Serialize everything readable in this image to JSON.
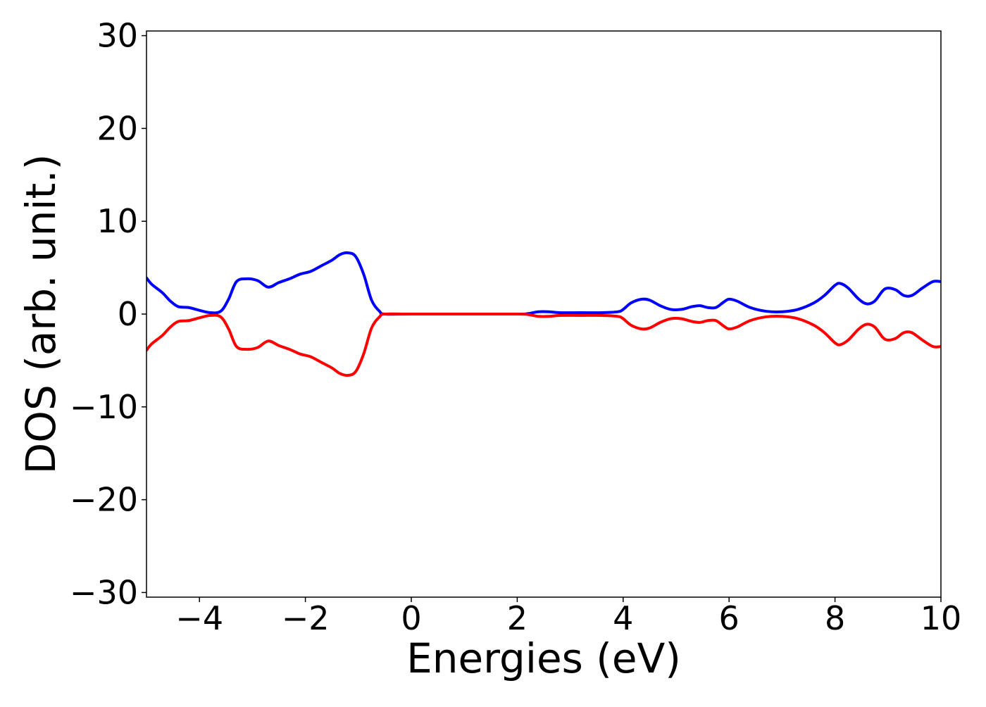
{
  "chart_data": {
    "type": "line",
    "title": "",
    "xlabel": "Energies (eV)",
    "ylabel": "DOS (arb. unit.)",
    "xlim": [
      -5,
      10
    ],
    "ylim": [
      -30.5,
      30.5
    ],
    "grid": false,
    "x_ticks": [
      {
        "value": -4,
        "label": "−4"
      },
      {
        "value": -2,
        "label": "−2"
      },
      {
        "value": 0,
        "label": "0"
      },
      {
        "value": 2,
        "label": "2"
      },
      {
        "value": 4,
        "label": "4"
      },
      {
        "value": 6,
        "label": "6"
      },
      {
        "value": 8,
        "label": "8"
      },
      {
        "value": 10,
        "label": "10"
      }
    ],
    "y_ticks": [
      {
        "value": 30,
        "label": "30"
      },
      {
        "value": 20,
        "label": "20"
      },
      {
        "value": 10,
        "label": "10"
      },
      {
        "value": 0,
        "label": "0"
      },
      {
        "value": -10,
        "label": "−10"
      },
      {
        "value": -20,
        "label": "−20"
      },
      {
        "value": -30,
        "label": "−30"
      }
    ],
    "series": [
      {
        "color": "#0000ff",
        "points": [
          [
            -5.0,
            3.9
          ],
          [
            -4.9,
            3.2
          ],
          [
            -4.7,
            2.3
          ],
          [
            -4.55,
            1.4
          ],
          [
            -4.4,
            0.8
          ],
          [
            -4.2,
            0.7
          ],
          [
            -4.0,
            0.4
          ],
          [
            -3.8,
            0.15
          ],
          [
            -3.6,
            0.3
          ],
          [
            -3.45,
            1.6
          ],
          [
            -3.3,
            3.5
          ],
          [
            -3.1,
            3.8
          ],
          [
            -2.9,
            3.6
          ],
          [
            -2.7,
            2.9
          ],
          [
            -2.5,
            3.4
          ],
          [
            -2.3,
            3.8
          ],
          [
            -2.1,
            4.3
          ],
          [
            -1.9,
            4.6
          ],
          [
            -1.7,
            5.2
          ],
          [
            -1.5,
            5.8
          ],
          [
            -1.35,
            6.4
          ],
          [
            -1.2,
            6.6
          ],
          [
            -1.05,
            6.2
          ],
          [
            -0.9,
            4.3
          ],
          [
            -0.75,
            1.5
          ],
          [
            -0.6,
            0.3
          ],
          [
            -0.5,
            0.0
          ],
          [
            0.0,
            0.0
          ],
          [
            1.0,
            0.0
          ],
          [
            2.0,
            0.0
          ],
          [
            2.2,
            0.05
          ],
          [
            2.4,
            0.25
          ],
          [
            2.6,
            0.25
          ],
          [
            2.8,
            0.15
          ],
          [
            3.2,
            0.15
          ],
          [
            3.6,
            0.15
          ],
          [
            3.9,
            0.25
          ],
          [
            4.0,
            0.5
          ],
          [
            4.15,
            1.2
          ],
          [
            4.35,
            1.6
          ],
          [
            4.5,
            1.5
          ],
          [
            4.7,
            0.9
          ],
          [
            4.9,
            0.5
          ],
          [
            5.1,
            0.5
          ],
          [
            5.3,
            0.8
          ],
          [
            5.45,
            0.9
          ],
          [
            5.6,
            0.7
          ],
          [
            5.75,
            0.7
          ],
          [
            5.9,
            1.3
          ],
          [
            6.0,
            1.6
          ],
          [
            6.15,
            1.4
          ],
          [
            6.4,
            0.7
          ],
          [
            6.7,
            0.3
          ],
          [
            7.0,
            0.25
          ],
          [
            7.3,
            0.5
          ],
          [
            7.6,
            1.2
          ],
          [
            7.8,
            2.0
          ],
          [
            8.0,
            3.1
          ],
          [
            8.1,
            3.3
          ],
          [
            8.25,
            2.8
          ],
          [
            8.45,
            1.6
          ],
          [
            8.6,
            1.1
          ],
          [
            8.75,
            1.4
          ],
          [
            8.9,
            2.5
          ],
          [
            9.0,
            2.8
          ],
          [
            9.15,
            2.6
          ],
          [
            9.3,
            2.0
          ],
          [
            9.45,
            2.0
          ],
          [
            9.65,
            2.8
          ],
          [
            9.85,
            3.5
          ],
          [
            10.0,
            3.5
          ]
        ]
      },
      {
        "color": "#ff0000",
        "points": [
          [
            -5.0,
            -3.9
          ],
          [
            -4.9,
            -3.2
          ],
          [
            -4.7,
            -2.3
          ],
          [
            -4.55,
            -1.4
          ],
          [
            -4.4,
            -0.8
          ],
          [
            -4.2,
            -0.7
          ],
          [
            -4.0,
            -0.4
          ],
          [
            -3.8,
            -0.15
          ],
          [
            -3.6,
            -0.3
          ],
          [
            -3.45,
            -1.6
          ],
          [
            -3.3,
            -3.5
          ],
          [
            -3.1,
            -3.8
          ],
          [
            -2.9,
            -3.6
          ],
          [
            -2.7,
            -2.9
          ],
          [
            -2.5,
            -3.4
          ],
          [
            -2.3,
            -3.8
          ],
          [
            -2.1,
            -4.3
          ],
          [
            -1.9,
            -4.6
          ],
          [
            -1.7,
            -5.2
          ],
          [
            -1.5,
            -5.8
          ],
          [
            -1.35,
            -6.4
          ],
          [
            -1.2,
            -6.6
          ],
          [
            -1.05,
            -6.2
          ],
          [
            -0.9,
            -4.3
          ],
          [
            -0.75,
            -1.5
          ],
          [
            -0.6,
            -0.3
          ],
          [
            -0.5,
            0.0
          ],
          [
            0.0,
            0.0
          ],
          [
            1.0,
            0.0
          ],
          [
            2.0,
            0.0
          ],
          [
            2.2,
            -0.05
          ],
          [
            2.4,
            -0.25
          ],
          [
            2.6,
            -0.25
          ],
          [
            2.8,
            -0.15
          ],
          [
            3.2,
            -0.15
          ],
          [
            3.6,
            -0.15
          ],
          [
            3.9,
            -0.25
          ],
          [
            4.0,
            -0.5
          ],
          [
            4.15,
            -1.2
          ],
          [
            4.35,
            -1.6
          ],
          [
            4.5,
            -1.5
          ],
          [
            4.7,
            -0.9
          ],
          [
            4.9,
            -0.5
          ],
          [
            5.1,
            -0.5
          ],
          [
            5.3,
            -0.8
          ],
          [
            5.45,
            -0.9
          ],
          [
            5.6,
            -0.7
          ],
          [
            5.75,
            -0.7
          ],
          [
            5.9,
            -1.3
          ],
          [
            6.0,
            -1.6
          ],
          [
            6.15,
            -1.4
          ],
          [
            6.4,
            -0.7
          ],
          [
            6.7,
            -0.3
          ],
          [
            7.0,
            -0.25
          ],
          [
            7.3,
            -0.5
          ],
          [
            7.6,
            -1.2
          ],
          [
            7.8,
            -2.0
          ],
          [
            8.0,
            -3.1
          ],
          [
            8.1,
            -3.3
          ],
          [
            8.25,
            -2.8
          ],
          [
            8.45,
            -1.6
          ],
          [
            8.6,
            -1.1
          ],
          [
            8.75,
            -1.4
          ],
          [
            8.9,
            -2.5
          ],
          [
            9.0,
            -2.8
          ],
          [
            9.15,
            -2.6
          ],
          [
            9.3,
            -2.0
          ],
          [
            9.45,
            -2.0
          ],
          [
            9.65,
            -2.8
          ],
          [
            9.85,
            -3.5
          ],
          [
            10.0,
            -3.5
          ]
        ]
      }
    ]
  }
}
